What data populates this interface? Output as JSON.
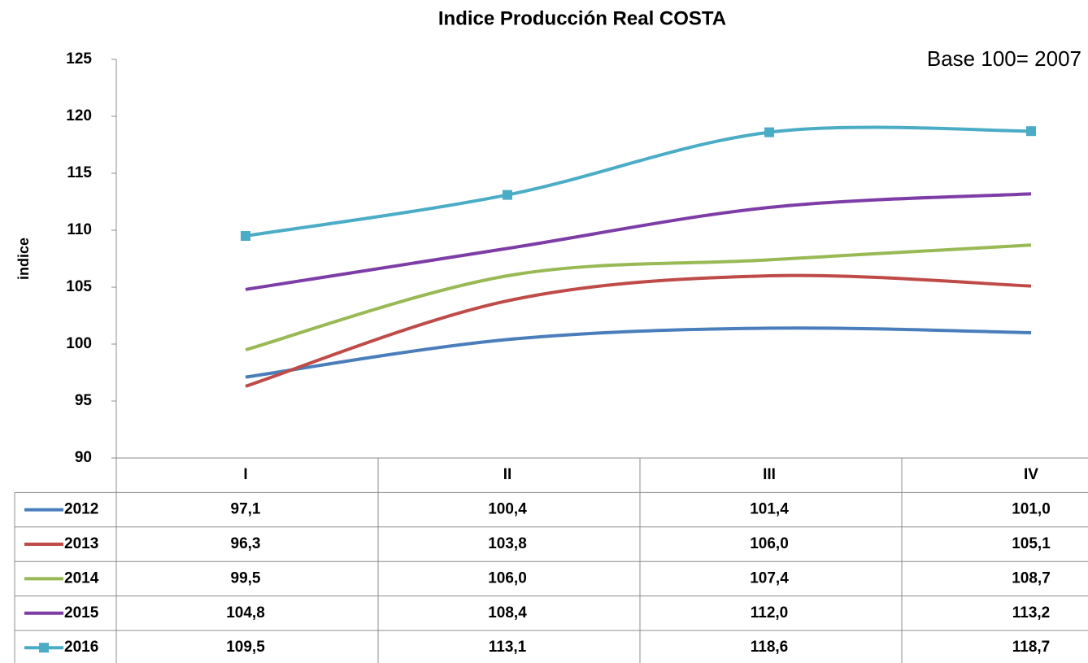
{
  "chart_data": {
    "type": "line",
    "title": "Indice Producción Real COSTA",
    "annotation": "Base 100= 2007",
    "y_label": "indice",
    "categories": [
      "I",
      "II",
      "III",
      "IV"
    ],
    "ylim": [
      90,
      125
    ],
    "yticks": [
      90,
      95,
      100,
      105,
      110,
      115,
      120,
      125
    ],
    "grid": false,
    "series": [
      {
        "name": "2012",
        "color": "#4a7ebb",
        "values": [
          97.1,
          100.4,
          101.4,
          101.0
        ],
        "value_labels": [
          "97,1",
          "100,4",
          "101,4",
          "101,0"
        ]
      },
      {
        "name": "2013",
        "color": "#be4b48",
        "values": [
          96.3,
          103.8,
          106.0,
          105.1
        ],
        "value_labels": [
          "96,3",
          "103,8",
          "106,0",
          "105,1"
        ]
      },
      {
        "name": "2014",
        "color": "#98b954",
        "values": [
          99.5,
          106.0,
          107.4,
          108.7
        ],
        "value_labels": [
          "99,5",
          "106,0",
          "107,4",
          "108,7"
        ]
      },
      {
        "name": "2015",
        "color": "#7d3ca6",
        "values": [
          104.8,
          108.4,
          112.0,
          113.2
        ],
        "value_labels": [
          "104,8",
          "108,4",
          "112,0",
          "113,2"
        ]
      },
      {
        "name": "2016",
        "color": "#4bacc6",
        "values": [
          109.5,
          113.1,
          118.6,
          118.7
        ],
        "value_labels": [
          "109,5",
          "113,1",
          "118,6",
          "118,7"
        ],
        "marker": "square"
      }
    ]
  }
}
